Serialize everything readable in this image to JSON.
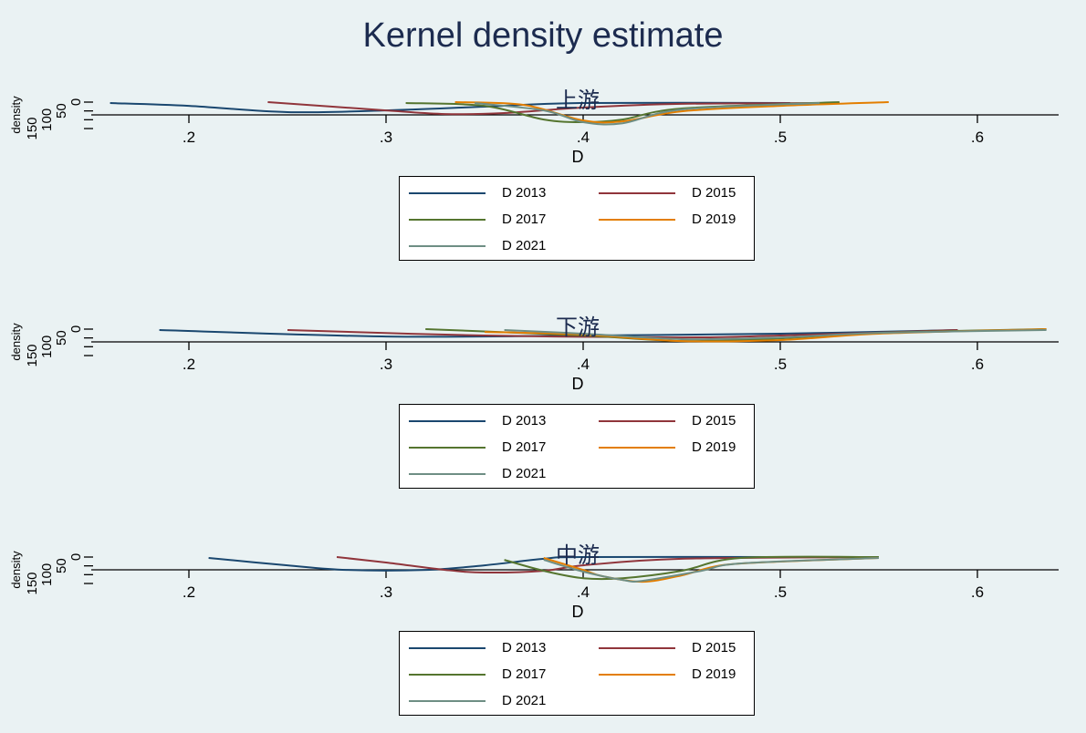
{
  "title": "Kernel density estimate",
  "chart_data": [
    {
      "type": "line",
      "title": "上游",
      "xlabel": "D",
      "ylabel": "density",
      "xticks": [
        ".2",
        ".3",
        ".4",
        ".5",
        ".6"
      ],
      "xtick_values": [
        0.2,
        0.3,
        0.4,
        0.5,
        0.6
      ],
      "yticks": [
        "0",
        "50",
        "100",
        "150"
      ],
      "ylim": [
        0,
        150
      ],
      "series": [
        {
          "name": "D 2013",
          "color": "#1a476f",
          "points": [
            [
              0.16,
              5
            ],
            [
              0.2,
              21
            ],
            [
              0.25,
              57
            ],
            [
              0.3,
              47
            ],
            [
              0.35,
              26
            ],
            [
              0.4,
              5
            ],
            [
              0.505,
              5
            ]
          ]
        },
        {
          "name": "D 2015",
          "color": "#90353b",
          "points": [
            [
              0.24,
              0
            ],
            [
              0.3,
              47
            ],
            [
              0.33,
              68
            ],
            [
              0.36,
              62
            ],
            [
              0.4,
              31
            ],
            [
              0.45,
              10
            ],
            [
              0.53,
              5
            ]
          ]
        },
        {
          "name": "D 2017",
          "color": "#55752f",
          "points": [
            [
              0.31,
              5
            ],
            [
              0.35,
              21
            ],
            [
              0.38,
              99
            ],
            [
              0.4,
              114
            ],
            [
              0.42,
              99
            ],
            [
              0.45,
              36
            ],
            [
              0.53,
              0
            ]
          ]
        },
        {
          "name": "D 2019",
          "color": "#e37e00",
          "points": [
            [
              0.335,
              0
            ],
            [
              0.37,
              16
            ],
            [
              0.4,
              104
            ],
            [
              0.42,
              109
            ],
            [
              0.45,
              52
            ],
            [
              0.5,
              21
            ],
            [
              0.555,
              0
            ]
          ]
        },
        {
          "name": "D 2021",
          "color": "#6e8e84",
          "points": [
            [
              0.345,
              5
            ],
            [
              0.38,
              47
            ],
            [
              0.4,
              114
            ],
            [
              0.42,
              120
            ],
            [
              0.45,
              42
            ],
            [
              0.52,
              5
            ]
          ]
        }
      ]
    },
    {
      "type": "line",
      "title": "下游",
      "xlabel": "D",
      "ylabel": "density",
      "xticks": [
        ".2",
        ".3",
        ".4",
        ".5",
        ".6"
      ],
      "xtick_values": [
        0.2,
        0.3,
        0.4,
        0.5,
        0.6
      ],
      "yticks": [
        "0",
        "50",
        "100",
        "150"
      ],
      "ylim": [
        0,
        150
      ],
      "series": [
        {
          "name": "D 2013",
          "color": "#1a476f",
          "points": [
            [
              0.185,
              5
            ],
            [
              0.3,
              42
            ],
            [
              0.4,
              36
            ],
            [
              0.5,
              26
            ],
            [
              0.59,
              5
            ]
          ]
        },
        {
          "name": "D 2015",
          "color": "#90353b",
          "points": [
            [
              0.25,
              5
            ],
            [
              0.35,
              36
            ],
            [
              0.45,
              47
            ],
            [
              0.5,
              36
            ],
            [
              0.59,
              5
            ]
          ]
        },
        {
          "name": "D 2017",
          "color": "#55752f",
          "points": [
            [
              0.32,
              0
            ],
            [
              0.4,
              36
            ],
            [
              0.45,
              68
            ],
            [
              0.5,
              52
            ],
            [
              0.55,
              21
            ],
            [
              0.635,
              0
            ]
          ]
        },
        {
          "name": "D 2019",
          "color": "#e37e00",
          "points": [
            [
              0.35,
              16
            ],
            [
              0.4,
              31
            ],
            [
              0.45,
              68
            ],
            [
              0.5,
              62
            ],
            [
              0.55,
              26
            ],
            [
              0.635,
              0
            ]
          ]
        },
        {
          "name": "D 2021",
          "color": "#6e8e84",
          "points": [
            [
              0.36,
              5
            ],
            [
              0.4,
              26
            ],
            [
              0.45,
              57
            ],
            [
              0.5,
              47
            ],
            [
              0.55,
              21
            ],
            [
              0.635,
              5
            ]
          ]
        }
      ]
    },
    {
      "type": "line",
      "title": "中游",
      "xlabel": "D",
      "ylabel": "density",
      "xticks": [
        ".2",
        ".3",
        ".4",
        ".5",
        ".6"
      ],
      "xtick_values": [
        0.2,
        0.3,
        0.4,
        0.5,
        0.6
      ],
      "yticks": [
        "0",
        "50",
        "100",
        "150"
      ],
      "ylim": [
        0,
        150
      ],
      "series": [
        {
          "name": "D 2013",
          "color": "#1a476f",
          "points": [
            [
              0.21,
              5
            ],
            [
              0.25,
              47
            ],
            [
              0.28,
              73
            ],
            [
              0.32,
              73
            ],
            [
              0.35,
              47
            ],
            [
              0.38,
              10
            ],
            [
              0.4,
              0
            ],
            [
              0.5,
              0
            ]
          ]
        },
        {
          "name": "D 2015",
          "color": "#90353b",
          "points": [
            [
              0.275,
              0
            ],
            [
              0.3,
              31
            ],
            [
              0.33,
              73
            ],
            [
              0.35,
              88
            ],
            [
              0.38,
              78
            ],
            [
              0.4,
              47
            ],
            [
              0.45,
              10
            ],
            [
              0.55,
              0
            ]
          ]
        },
        {
          "name": "D 2017",
          "color": "#55752f",
          "points": [
            [
              0.36,
              16
            ],
            [
              0.38,
              78
            ],
            [
              0.4,
              120
            ],
            [
              0.42,
              120
            ],
            [
              0.45,
              78
            ],
            [
              0.48,
              5
            ],
            [
              0.55,
              0
            ]
          ]
        },
        {
          "name": "D 2019",
          "color": "#e37e00",
          "points": [
            [
              0.38,
              5
            ],
            [
              0.4,
              73
            ],
            [
              0.41,
              109
            ],
            [
              0.43,
              140
            ],
            [
              0.45,
              104
            ],
            [
              0.47,
              47
            ],
            [
              0.5,
              26
            ],
            [
              0.55,
              5
            ]
          ]
        },
        {
          "name": "D 2021",
          "color": "#6e8e84",
          "points": [
            [
              0.38,
              16
            ],
            [
              0.4,
              83
            ],
            [
              0.42,
              130
            ],
            [
              0.43,
              135
            ],
            [
              0.46,
              78
            ],
            [
              0.48,
              36
            ],
            [
              0.55,
              5
            ]
          ]
        }
      ]
    }
  ]
}
